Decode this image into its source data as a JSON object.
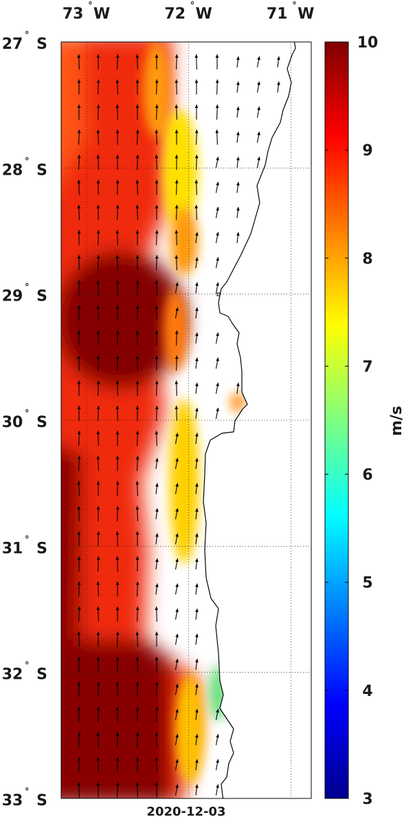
{
  "map": {
    "date": "2020-12-03",
    "lon_labels": [
      {
        "deg": "73",
        "hemi": "W",
        "value": -73
      },
      {
        "deg": "72",
        "hemi": "W",
        "value": -72
      },
      {
        "deg": "71",
        "hemi": "W",
        "value": -71
      }
    ],
    "lat_labels": [
      {
        "deg": "27",
        "hemi": "S",
        "value": -27
      },
      {
        "deg": "28",
        "hemi": "S",
        "value": -28
      },
      {
        "deg": "29",
        "hemi": "S",
        "value": -29
      },
      {
        "deg": "30",
        "hemi": "S",
        "value": -30
      },
      {
        "deg": "31",
        "hemi": "S",
        "value": -31
      },
      {
        "deg": "32",
        "hemi": "S",
        "value": -32
      },
      {
        "deg": "33",
        "hemi": "S",
        "value": -33
      }
    ],
    "lon_range": [
      -73.25,
      -70.8
    ],
    "lat_range": [
      -33,
      -27
    ],
    "grid": true,
    "variable": "wind speed with direction arrows",
    "arrow_direction": "mostly northward",
    "colorbar": {
      "label": "m/s",
      "min": 3,
      "max": 10,
      "ticks": [
        "3",
        "4",
        "5",
        "6",
        "7",
        "8",
        "9",
        "10"
      ],
      "colormap": "jet",
      "placement": "right"
    },
    "colors": {
      "land": "#ffffff",
      "coastline": "#000000",
      "arrow": "#000000",
      "grid": "#222222"
    }
  }
}
